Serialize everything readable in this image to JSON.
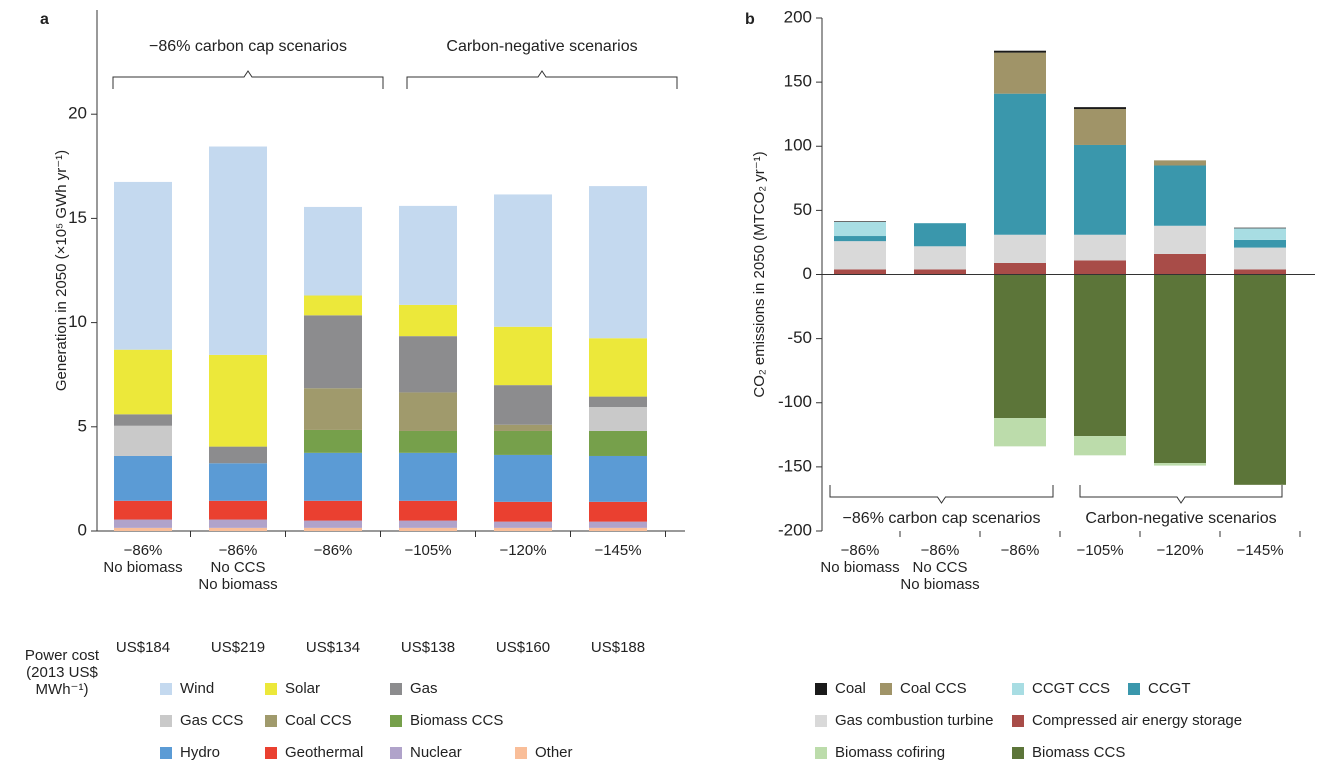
{
  "chart_data": [
    {
      "type": "stacked_bar",
      "panel_label": "a",
      "y_label": "Generation in 2050 (×10⁵ GWh yr⁻¹)",
      "categories": [
        "−86%\nNo biomass",
        "−86%\nNo CCS\nNo biomass",
        "−86%",
        "−105%",
        "−120%",
        "−145%"
      ],
      "ylim": [
        0,
        25
      ],
      "yticks": [
        0,
        5,
        10,
        15,
        20
      ],
      "annotations": [
        "−86% carbon cap scenarios",
        "Carbon-negative scenarios"
      ],
      "power_cost_label": "Power cost\n(2013 US$\nMWh⁻¹)",
      "power_costs": [
        "US$184",
        "US$219",
        "US$134",
        "US$138",
        "US$160",
        "US$188"
      ],
      "legend": "bottom",
      "series": [
        {
          "name": "Wind",
          "color": "#c4d9ef",
          "values": [
            8.05,
            10.0,
            4.25,
            4.75,
            6.35,
            7.3
          ]
        },
        {
          "name": "Solar",
          "color": "#ece83a",
          "values": [
            3.1,
            4.4,
            0.95,
            1.5,
            2.8,
            2.8
          ]
        },
        {
          "name": "Gas",
          "color": "#8c8c8e",
          "values": [
            0.55,
            0.8,
            3.5,
            2.7,
            1.9,
            0.5
          ]
        },
        {
          "name": "Gas CCS",
          "color": "#c9c9c9",
          "values": [
            1.45,
            0,
            0,
            0,
            0,
            1.15
          ]
        },
        {
          "name": "Coal CCS",
          "color": "#a09a6c",
          "values": [
            0,
            0,
            2.0,
            1.85,
            0.3,
            0
          ]
        },
        {
          "name": "Biomass CCS",
          "color": "#76a04b",
          "values": [
            0,
            0,
            1.1,
            1.05,
            1.15,
            1.2
          ]
        },
        {
          "name": "Hydro",
          "color": "#5b9bd5",
          "values": [
            2.15,
            1.8,
            2.3,
            2.3,
            2.25,
            2.2
          ]
        },
        {
          "name": "Geothermal",
          "color": "#ea4030",
          "values": [
            0.9,
            0.9,
            0.95,
            0.95,
            0.95,
            0.95
          ]
        },
        {
          "name": "Nuclear",
          "color": "#b0a3ca",
          "values": [
            0.4,
            0.4,
            0.35,
            0.35,
            0.3,
            0.3
          ]
        },
        {
          "name": "Other",
          "color": "#f9be99",
          "values": [
            0.15,
            0.15,
            0.15,
            0.15,
            0.15,
            0.15
          ]
        }
      ]
    },
    {
      "type": "stacked_bar",
      "panel_label": "b",
      "y_label": "CO₂ emissions in 2050 (MTCO₂ yr⁻¹)",
      "categories": [
        "−86%\nNo biomass",
        "−86%\nNo CCS\nNo biomass",
        "−86%",
        "−105%",
        "−120%",
        "−145%"
      ],
      "ylim": [
        -200,
        200
      ],
      "yticks": [
        -200,
        -150,
        -100,
        -50,
        0,
        50,
        100,
        150,
        200
      ],
      "annotations": [
        "−86% carbon cap scenarios",
        "Carbon-negative scenarios"
      ],
      "legend": "bottom",
      "series": [
        {
          "name": "Coal",
          "color": "#1a1a1a",
          "values": [
            0.5,
            0,
            1.5,
            1.5,
            0,
            0.5
          ]
        },
        {
          "name": "Coal CCS",
          "color": "#a09468",
          "values": [
            0,
            0,
            32,
            28,
            4,
            0
          ]
        },
        {
          "name": "CCGT CCS",
          "color": "#a8dde3",
          "values": [
            11,
            0,
            0,
            0,
            0,
            9
          ]
        },
        {
          "name": "CCGT",
          "color": "#3a97ac",
          "values": [
            4,
            18,
            110,
            70,
            47,
            6
          ]
        },
        {
          "name": "Gas combustion turbine",
          "color": "#d9d9d9",
          "values": [
            22,
            18,
            22,
            20,
            22,
            17
          ]
        },
        {
          "name": "Compressed air energy storage",
          "color": "#a84c48",
          "values": [
            4,
            4,
            9,
            11,
            16,
            4
          ]
        },
        {
          "name": "Biomass cofiring",
          "color": "#bcdcab",
          "values": [
            0,
            0,
            -22,
            -15,
            -2,
            0
          ]
        },
        {
          "name": "Biomass CCS",
          "color": "#5c7539",
          "values": [
            0,
            0,
            -112,
            -126,
            -147,
            -164
          ]
        }
      ]
    }
  ]
}
